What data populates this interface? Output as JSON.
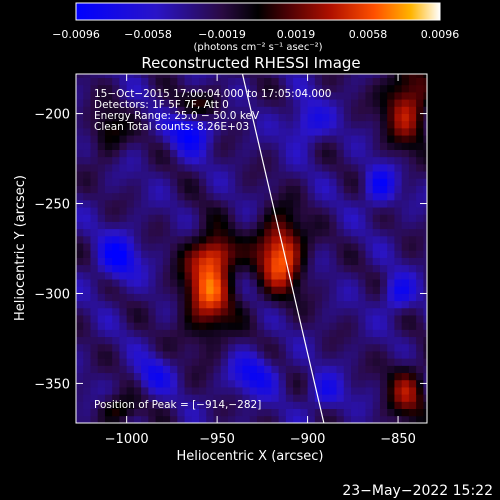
{
  "chart_data": {
    "type": "heatmap",
    "title": "Reconstructed RHESSI Image",
    "xlabel": "Heliocentric X (arcsec)",
    "ylabel": "Heliocentric Y (arcsec)",
    "xlim": [
      -1028,
      -834
    ],
    "ylim": [
      -372,
      -178
    ],
    "x_ticks": [
      -1000,
      -950,
      -900,
      -850
    ],
    "y_ticks": [
      -350,
      -300,
      -250,
      -200
    ],
    "x_tick_labels": [
      "−1000",
      "−950",
      "−900",
      "−850"
    ],
    "y_tick_labels": [
      "−350",
      "−300",
      "−250",
      "−200"
    ],
    "colorbar": {
      "range": [
        -0.0096,
        0.0096
      ],
      "ticks": [
        -0.0096,
        -0.0058,
        -0.0019,
        0.0019,
        0.0058,
        0.0096
      ],
      "tick_labels": [
        "−0.0096",
        "−0.0058",
        "−0.0019",
        "0.0019",
        "0.0058",
        "0.0096"
      ],
      "unit_label": "(photons cm⁻² s⁻¹ asec⁻²)"
    },
    "annotations": [
      "15−Oct−2015 17:00:04.000 to 17:05:04.000",
      "Detectors: 1F 5F 7F, Att 0",
      "Energy Range: 25.0 − 50.0 keV",
      "Clean    Total counts: 8.26E+03"
    ],
    "peak_label": "Position of Peak = [−914,−282]",
    "peak": [
      -914,
      -282
    ],
    "limb_line": [
      [
        -936,
        -178
      ],
      [
        -891,
        -372
      ]
    ],
    "sources": [
      {
        "x": -955,
        "y": -297,
        "sx": 10,
        "sy": 19,
        "amp": 0.0085
      },
      {
        "x": -915,
        "y": -278,
        "sx": 9,
        "sy": 15,
        "amp": 0.0096
      },
      {
        "x": -950,
        "y": -278,
        "sx": 7,
        "sy": 7,
        "amp": 0.005
      },
      {
        "x": -845,
        "y": -195,
        "sx": 9,
        "sy": 16,
        "amp": 0.0072
      },
      {
        "x": -845,
        "y": -355,
        "sx": 8,
        "sy": 12,
        "amp": 0.0056
      },
      {
        "x": -1010,
        "y": -210,
        "sx": 7,
        "sy": 9,
        "amp": 0.004
      },
      {
        "x": -1005,
        "y": -365,
        "sx": 8,
        "sy": 6,
        "amp": 0.004
      },
      {
        "x": -960,
        "y": -195,
        "sx": 10,
        "sy": 6,
        "amp": 0.0036
      }
    ],
    "holes": [
      {
        "x": -965,
        "y": -210,
        "sx": 8,
        "sy": 8,
        "amp": -0.006
      },
      {
        "x": -900,
        "y": -205,
        "sx": 8,
        "sy": 8,
        "amp": -0.0045
      },
      {
        "x": -1005,
        "y": -280,
        "sx": 8,
        "sy": 9,
        "amp": -0.006
      },
      {
        "x": -860,
        "y": -240,
        "sx": 6,
        "sy": 8,
        "amp": -0.0055
      },
      {
        "x": -850,
        "y": -300,
        "sx": 6,
        "sy": 7,
        "amp": -0.005
      },
      {
        "x": -930,
        "y": -345,
        "sx": 9,
        "sy": 8,
        "amp": -0.005
      },
      {
        "x": -985,
        "y": -345,
        "sx": 7,
        "sy": 7,
        "amp": -0.004
      },
      {
        "x": -890,
        "y": -355,
        "sx": 7,
        "sy": 7,
        "amp": -0.004
      }
    ]
  },
  "footer": {
    "timestamp": "23−May−2022 15:22"
  }
}
